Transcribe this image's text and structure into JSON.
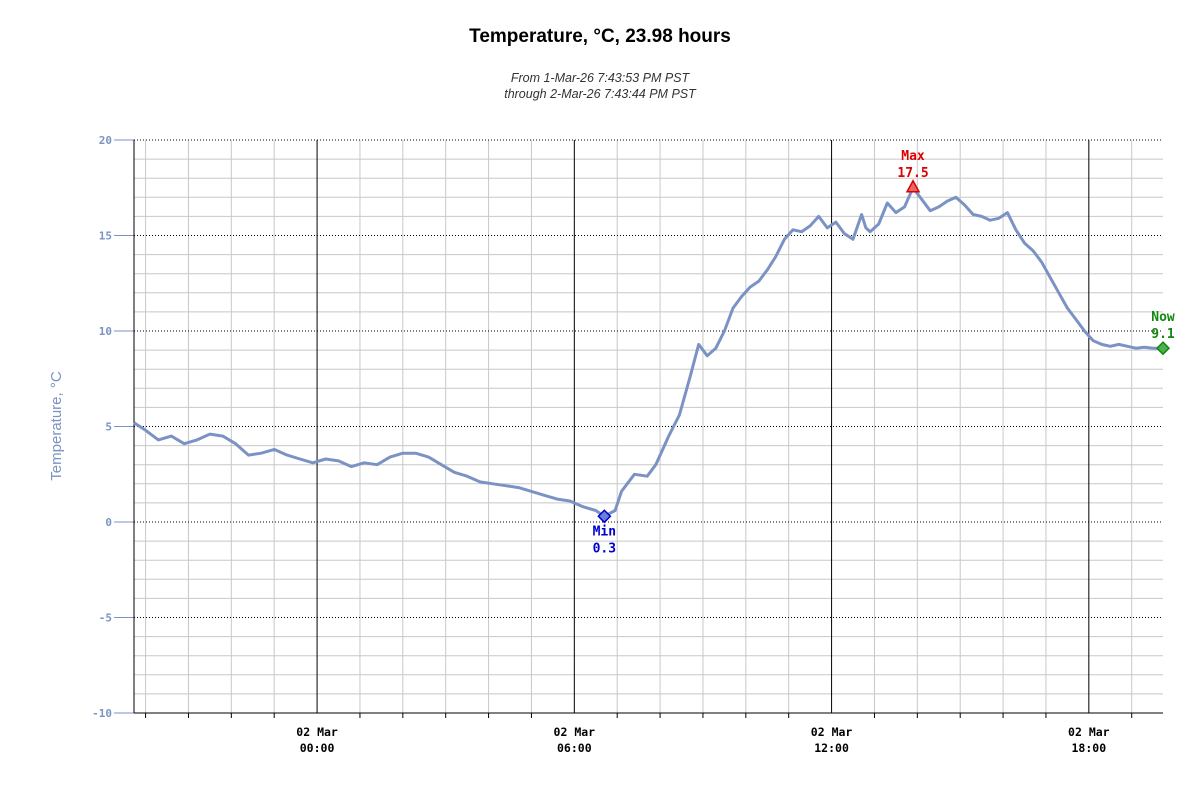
{
  "chart_data": {
    "type": "line",
    "title": "Temperature, °C, 23.98 hours",
    "subtitle_from": "From 1-Mar-26 7:43:53 PM PST",
    "subtitle_through": "through 2-Mar-26 7:43:44 PM PST",
    "ylabel": "Temperature, °C",
    "ylim": [
      -10,
      20
    ],
    "yticks": [
      "20",
      "15",
      "10",
      "5",
      "0",
      "-5",
      "-10"
    ],
    "ytick_values": [
      20,
      15,
      10,
      5,
      0,
      -5,
      -10
    ],
    "x_unit": "hours since 02 Mar 00:00",
    "xlim": [
      -4.27,
      19.73
    ],
    "xticks": [
      {
        "value": 0,
        "date": "02 Mar",
        "time": "00:00"
      },
      {
        "value": 6,
        "date": "02 Mar",
        "time": "06:00"
      },
      {
        "value": 12,
        "date": "02 Mar",
        "time": "12:00"
      },
      {
        "value": 18,
        "date": "02 Mar",
        "time": "18:00"
      }
    ],
    "colors": {
      "line": "#7b93c4",
      "min": "#0000cc",
      "max": "#dd0000",
      "now": "#118811"
    },
    "series": [
      {
        "name": "Temperature",
        "x": [
          -4.27,
          -4.0,
          -3.7,
          -3.4,
          -3.1,
          -2.8,
          -2.5,
          -2.2,
          -1.9,
          -1.6,
          -1.3,
          -1.0,
          -0.7,
          -0.4,
          -0.1,
          0.2,
          0.5,
          0.8,
          1.1,
          1.4,
          1.7,
          2.0,
          2.3,
          2.6,
          2.9,
          3.2,
          3.5,
          3.8,
          4.1,
          4.4,
          4.7,
          5.0,
          5.3,
          5.6,
          5.9,
          6.2,
          6.5,
          6.7,
          6.95,
          7.1,
          7.4,
          7.7,
          7.9,
          8.2,
          8.45,
          8.6,
          8.7,
          8.9,
          9.1,
          9.3,
          9.5,
          9.7,
          9.9,
          10.1,
          10.3,
          10.5,
          10.7,
          10.9,
          11.1,
          11.3,
          11.5,
          11.7,
          11.9,
          12.1,
          12.3,
          12.5,
          12.7,
          12.8,
          12.9,
          13.1,
          13.3,
          13.5,
          13.7,
          13.9,
          14.1,
          14.3,
          14.5,
          14.7,
          14.9,
          15.1,
          15.3,
          15.5,
          15.7,
          15.9,
          16.1,
          16.3,
          16.5,
          16.7,
          16.9,
          17.1,
          17.3,
          17.5,
          17.7,
          17.9,
          18.1,
          18.3,
          18.5,
          18.7,
          18.9,
          19.1,
          19.3,
          19.5,
          19.73
        ],
        "y": [
          5.2,
          4.8,
          4.3,
          4.5,
          4.1,
          4.3,
          4.6,
          4.5,
          4.1,
          3.5,
          3.6,
          3.8,
          3.5,
          3.3,
          3.1,
          3.3,
          3.2,
          2.9,
          3.1,
          3.0,
          3.4,
          3.6,
          3.6,
          3.4,
          3.0,
          2.6,
          2.4,
          2.1,
          2.0,
          1.9,
          1.8,
          1.6,
          1.4,
          1.2,
          1.1,
          0.8,
          0.6,
          0.3,
          0.6,
          1.6,
          2.5,
          2.4,
          3.0,
          4.5,
          5.6,
          6.8,
          7.6,
          9.3,
          8.7,
          9.1,
          10.0,
          11.2,
          11.8,
          12.3,
          12.6,
          13.2,
          13.9,
          14.8,
          15.3,
          15.2,
          15.5,
          16.0,
          15.4,
          15.7,
          15.1,
          14.8,
          16.1,
          15.4,
          15.2,
          15.6,
          16.7,
          16.2,
          16.5,
          17.5,
          16.9,
          16.3,
          16.5,
          16.8,
          17.0,
          16.6,
          16.1,
          16.0,
          15.8,
          15.9,
          16.2,
          15.3,
          14.6,
          14.2,
          13.6,
          12.8,
          12.0,
          11.2,
          10.6,
          10.0,
          9.5,
          9.3,
          9.2,
          9.3,
          9.2,
          9.1,
          9.15,
          9.1,
          9.1
        ]
      }
    ],
    "annotations": {
      "min": {
        "label": "Min",
        "value": "0.3",
        "x": 6.7,
        "y": 0.3
      },
      "max": {
        "label": "Max",
        "value": "17.5",
        "x": 13.9,
        "y": 17.5
      },
      "now": {
        "label": "Now",
        "value": "9.1",
        "x": 19.73,
        "y": 9.1
      }
    }
  }
}
